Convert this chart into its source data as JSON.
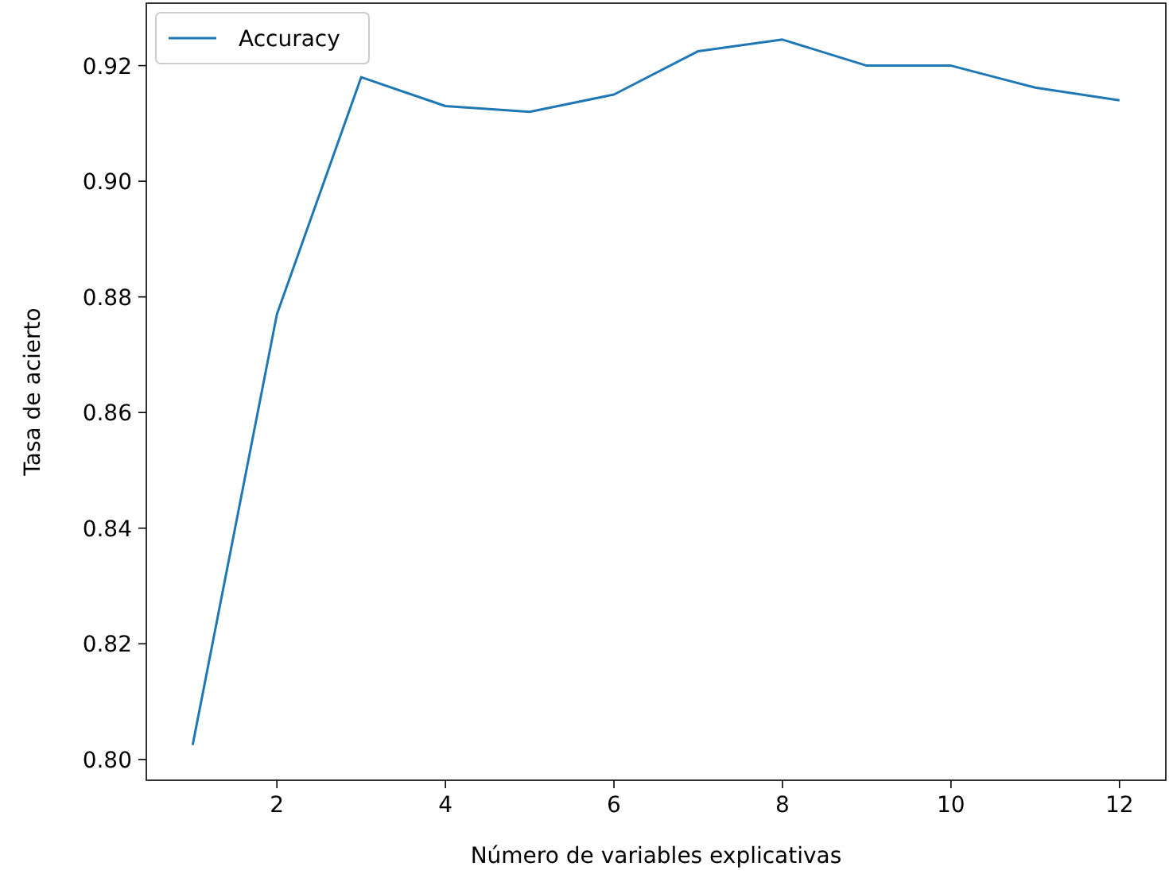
{
  "chart_data": {
    "type": "line",
    "xlabel": "Número de variables explicativas",
    "ylabel": "Tasa de acierto",
    "x": [
      1,
      2,
      3,
      4,
      5,
      6,
      7,
      8,
      9,
      10,
      11,
      12
    ],
    "series": [
      {
        "name": "Accuracy",
        "color": "#1f77b4",
        "values": [
          0.8025,
          0.877,
          0.918,
          0.913,
          0.912,
          0.915,
          0.9225,
          0.9245,
          0.92,
          0.92,
          0.9162,
          0.914
        ]
      }
    ],
    "xlim": [
      0.45,
      12.55
    ],
    "ylim": [
      0.7964,
      0.9308
    ],
    "xticks": [
      2,
      4,
      6,
      8,
      10,
      12
    ],
    "yticks": [
      {
        "value": 0.8,
        "label": "0.80"
      },
      {
        "value": 0.82,
        "label": "0.82"
      },
      {
        "value": 0.84,
        "label": "0.84"
      },
      {
        "value": 0.86,
        "label": "0.86"
      },
      {
        "value": 0.88,
        "label": "0.88"
      },
      {
        "value": 0.9,
        "label": "0.90"
      },
      {
        "value": 0.92,
        "label": "0.92"
      }
    ],
    "legend": "top left",
    "grid": false
  }
}
